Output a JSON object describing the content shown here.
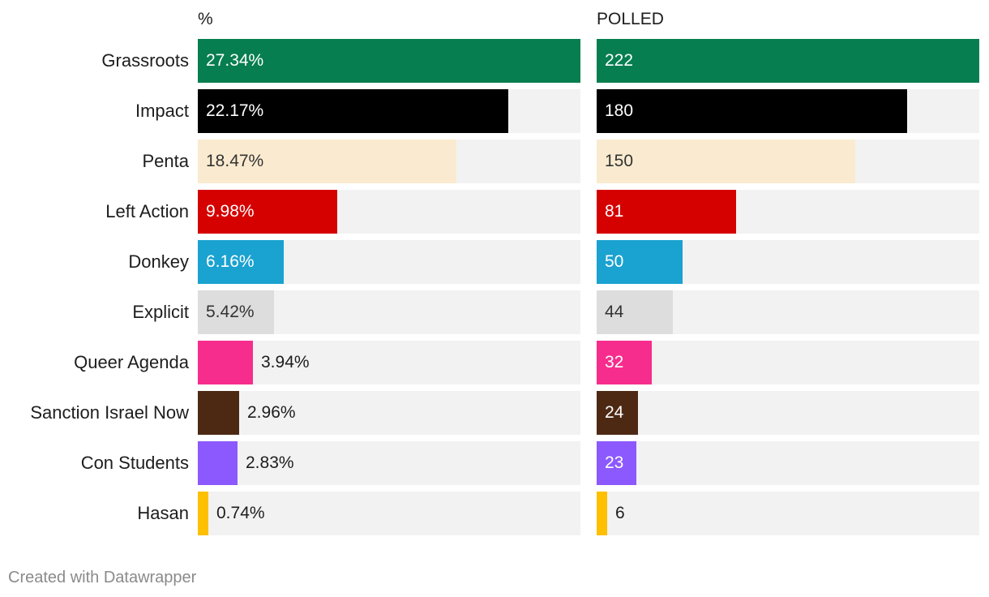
{
  "chart_data": {
    "type": "bar",
    "orientation": "horizontal",
    "categories": [
      "Grassroots",
      "Impact",
      "Penta",
      "Left Action",
      "Donkey",
      "Explicit",
      "Queer Agenda",
      "Sanction Israel Now",
      "Con Students",
      "Hasan"
    ],
    "colors": [
      "#067e4f",
      "#000000",
      "#faebd0",
      "#d50000",
      "#1aa2d0",
      "#dddddd",
      "#f72d8d",
      "#4d2914",
      "#8c59fe",
      "#fec001"
    ],
    "series": [
      {
        "name": "%",
        "values": [
          27.34,
          22.17,
          18.47,
          9.98,
          6.16,
          5.42,
          3.94,
          2.96,
          2.83,
          0.74
        ],
        "labels": [
          "27.34%",
          "22.17%",
          "18.47%",
          "9.98%",
          "6.16%",
          "5.42%",
          "3.94%",
          "2.96%",
          "2.83%",
          "0.74%"
        ],
        "max": 27.34
      },
      {
        "name": "POLLED",
        "values": [
          222,
          180,
          150,
          81,
          50,
          44,
          32,
          24,
          23,
          6
        ],
        "labels": [
          "222",
          "180",
          "150",
          "81",
          "50",
          "44",
          "32",
          "24",
          "23",
          "6"
        ],
        "max": 222
      }
    ],
    "label_text_colors": [
      "#ffffff",
      "#ffffff",
      "#333333",
      "#ffffff",
      "#ffffff",
      "#333333",
      "#ffffff",
      "#ffffff",
      "#ffffff",
      "#333333"
    ],
    "track_color": "#f2f2f2"
  },
  "footer": {
    "credit": "Created with Datawrapper"
  }
}
